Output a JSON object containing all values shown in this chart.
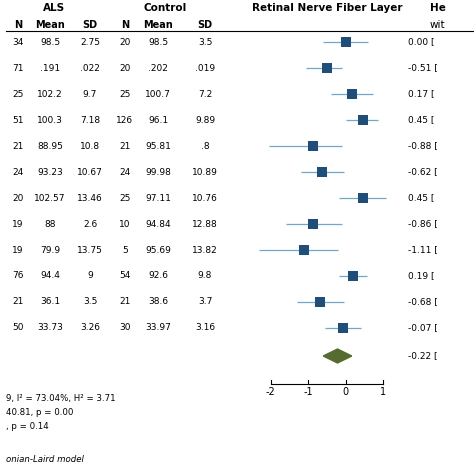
{
  "title": "Retinal Nerve Fiber Layer",
  "als_header": "ALS",
  "control_header": "Control",
  "col_headers": [
    "N",
    "Mean",
    "SD",
    "N",
    "Mean",
    "SD"
  ],
  "rows": [
    {
      "als_n": "34",
      "als_mean": "98.5",
      "als_sd": "2.75",
      "ctrl_n": "20",
      "ctrl_mean": "98.5",
      "ctrl_sd": "3.5",
      "effect": 0.0,
      "ci_low": -0.6,
      "ci_high": 0.6,
      "label": "0.00 ["
    },
    {
      "als_n": "71",
      "als_mean": ".191",
      "als_sd": ".022",
      "ctrl_n": "20",
      "ctrl_mean": ".202",
      "ctrl_sd": ".019",
      "effect": -0.51,
      "ci_low": -1.05,
      "ci_high": -0.1,
      "label": "-0.51 ["
    },
    {
      "als_n": "25",
      "als_mean": "102.2",
      "als_sd": "9.7",
      "ctrl_n": "25",
      "ctrl_mean": "100.7",
      "ctrl_sd": "7.2",
      "effect": 0.17,
      "ci_low": -0.38,
      "ci_high": 0.72,
      "label": "0.17 ["
    },
    {
      "als_n": "51",
      "als_mean": "100.3",
      "als_sd": "7.18",
      "ctrl_n": "126",
      "ctrl_mean": "96.1",
      "ctrl_sd": "9.89",
      "effect": 0.45,
      "ci_low": 0.02,
      "ci_high": 0.87,
      "label": "0.45 ["
    },
    {
      "als_n": "21",
      "als_mean": "88.95",
      "als_sd": "10.8",
      "ctrl_n": "21",
      "ctrl_mean": "95.81",
      "ctrl_sd": ".8",
      "effect": -0.88,
      "ci_low": -2.05,
      "ci_high": -0.1,
      "label": "-0.88 ["
    },
    {
      "als_n": "24",
      "als_mean": "93.23",
      "als_sd": "10.67",
      "ctrl_n": "24",
      "ctrl_mean": "99.98",
      "ctrl_sd": "10.89",
      "effect": -0.62,
      "ci_low": -1.2,
      "ci_high": -0.04,
      "label": "-0.62 ["
    },
    {
      "als_n": "20",
      "als_mean": "102.57",
      "als_sd": "13.46",
      "ctrl_n": "25",
      "ctrl_mean": "97.11",
      "ctrl_sd": "10.76",
      "effect": 0.45,
      "ci_low": -0.17,
      "ci_high": 1.07,
      "label": "0.45 ["
    },
    {
      "als_n": "19",
      "als_mean": "88",
      "als_sd": "2.6",
      "ctrl_n": "10",
      "ctrl_mean": "94.84",
      "ctrl_sd": "12.88",
      "effect": -0.86,
      "ci_low": -1.6,
      "ci_high": -0.1,
      "label": "-0.86 ["
    },
    {
      "als_n": "19",
      "als_mean": "79.9",
      "als_sd": "13.75",
      "ctrl_n": "5",
      "ctrl_mean": "95.69",
      "ctrl_sd": "13.82",
      "effect": -1.11,
      "ci_low": -2.3,
      "ci_high": -0.2,
      "label": "-1.11 ["
    },
    {
      "als_n": "76",
      "als_mean": "94.4",
      "als_sd": "9",
      "ctrl_n": "54",
      "ctrl_mean": "92.6",
      "ctrl_sd": "9.8",
      "effect": 0.19,
      "ci_low": -0.18,
      "ci_high": 0.57,
      "label": "0.19 ["
    },
    {
      "als_n": "21",
      "als_mean": "36.1",
      "als_sd": "3.5",
      "ctrl_n": "21",
      "ctrl_mean": "38.6",
      "ctrl_sd": "3.7",
      "effect": -0.68,
      "ci_low": -1.3,
      "ci_high": -0.05,
      "label": "-0.68 ["
    },
    {
      "als_n": "50",
      "als_mean": "33.73",
      "als_sd": "3.26",
      "ctrl_n": "30",
      "ctrl_mean": "33.97",
      "ctrl_sd": "3.16",
      "effect": -0.07,
      "ci_low": -0.56,
      "ci_high": 0.41,
      "label": "-0.07 ["
    }
  ],
  "summary": {
    "effect": -0.22,
    "ci_low": -0.6,
    "ci_high": 0.16,
    "label": "-0.22 ["
  },
  "stat_lines": [
    "9, I² = 73.04%, H² = 3.71",
    "40.81, p = 0.00",
    ", p = 0.14"
  ],
  "footer": "onian-Laird model",
  "x_ticks": [
    -2,
    -1,
    0,
    1
  ],
  "xlim": [
    -2.5,
    1.5
  ],
  "square_color": "#1F4E79",
  "diamond_color": "#556B2F",
  "line_color": "#6FA8C9",
  "bg_color": "#FFFFFF"
}
